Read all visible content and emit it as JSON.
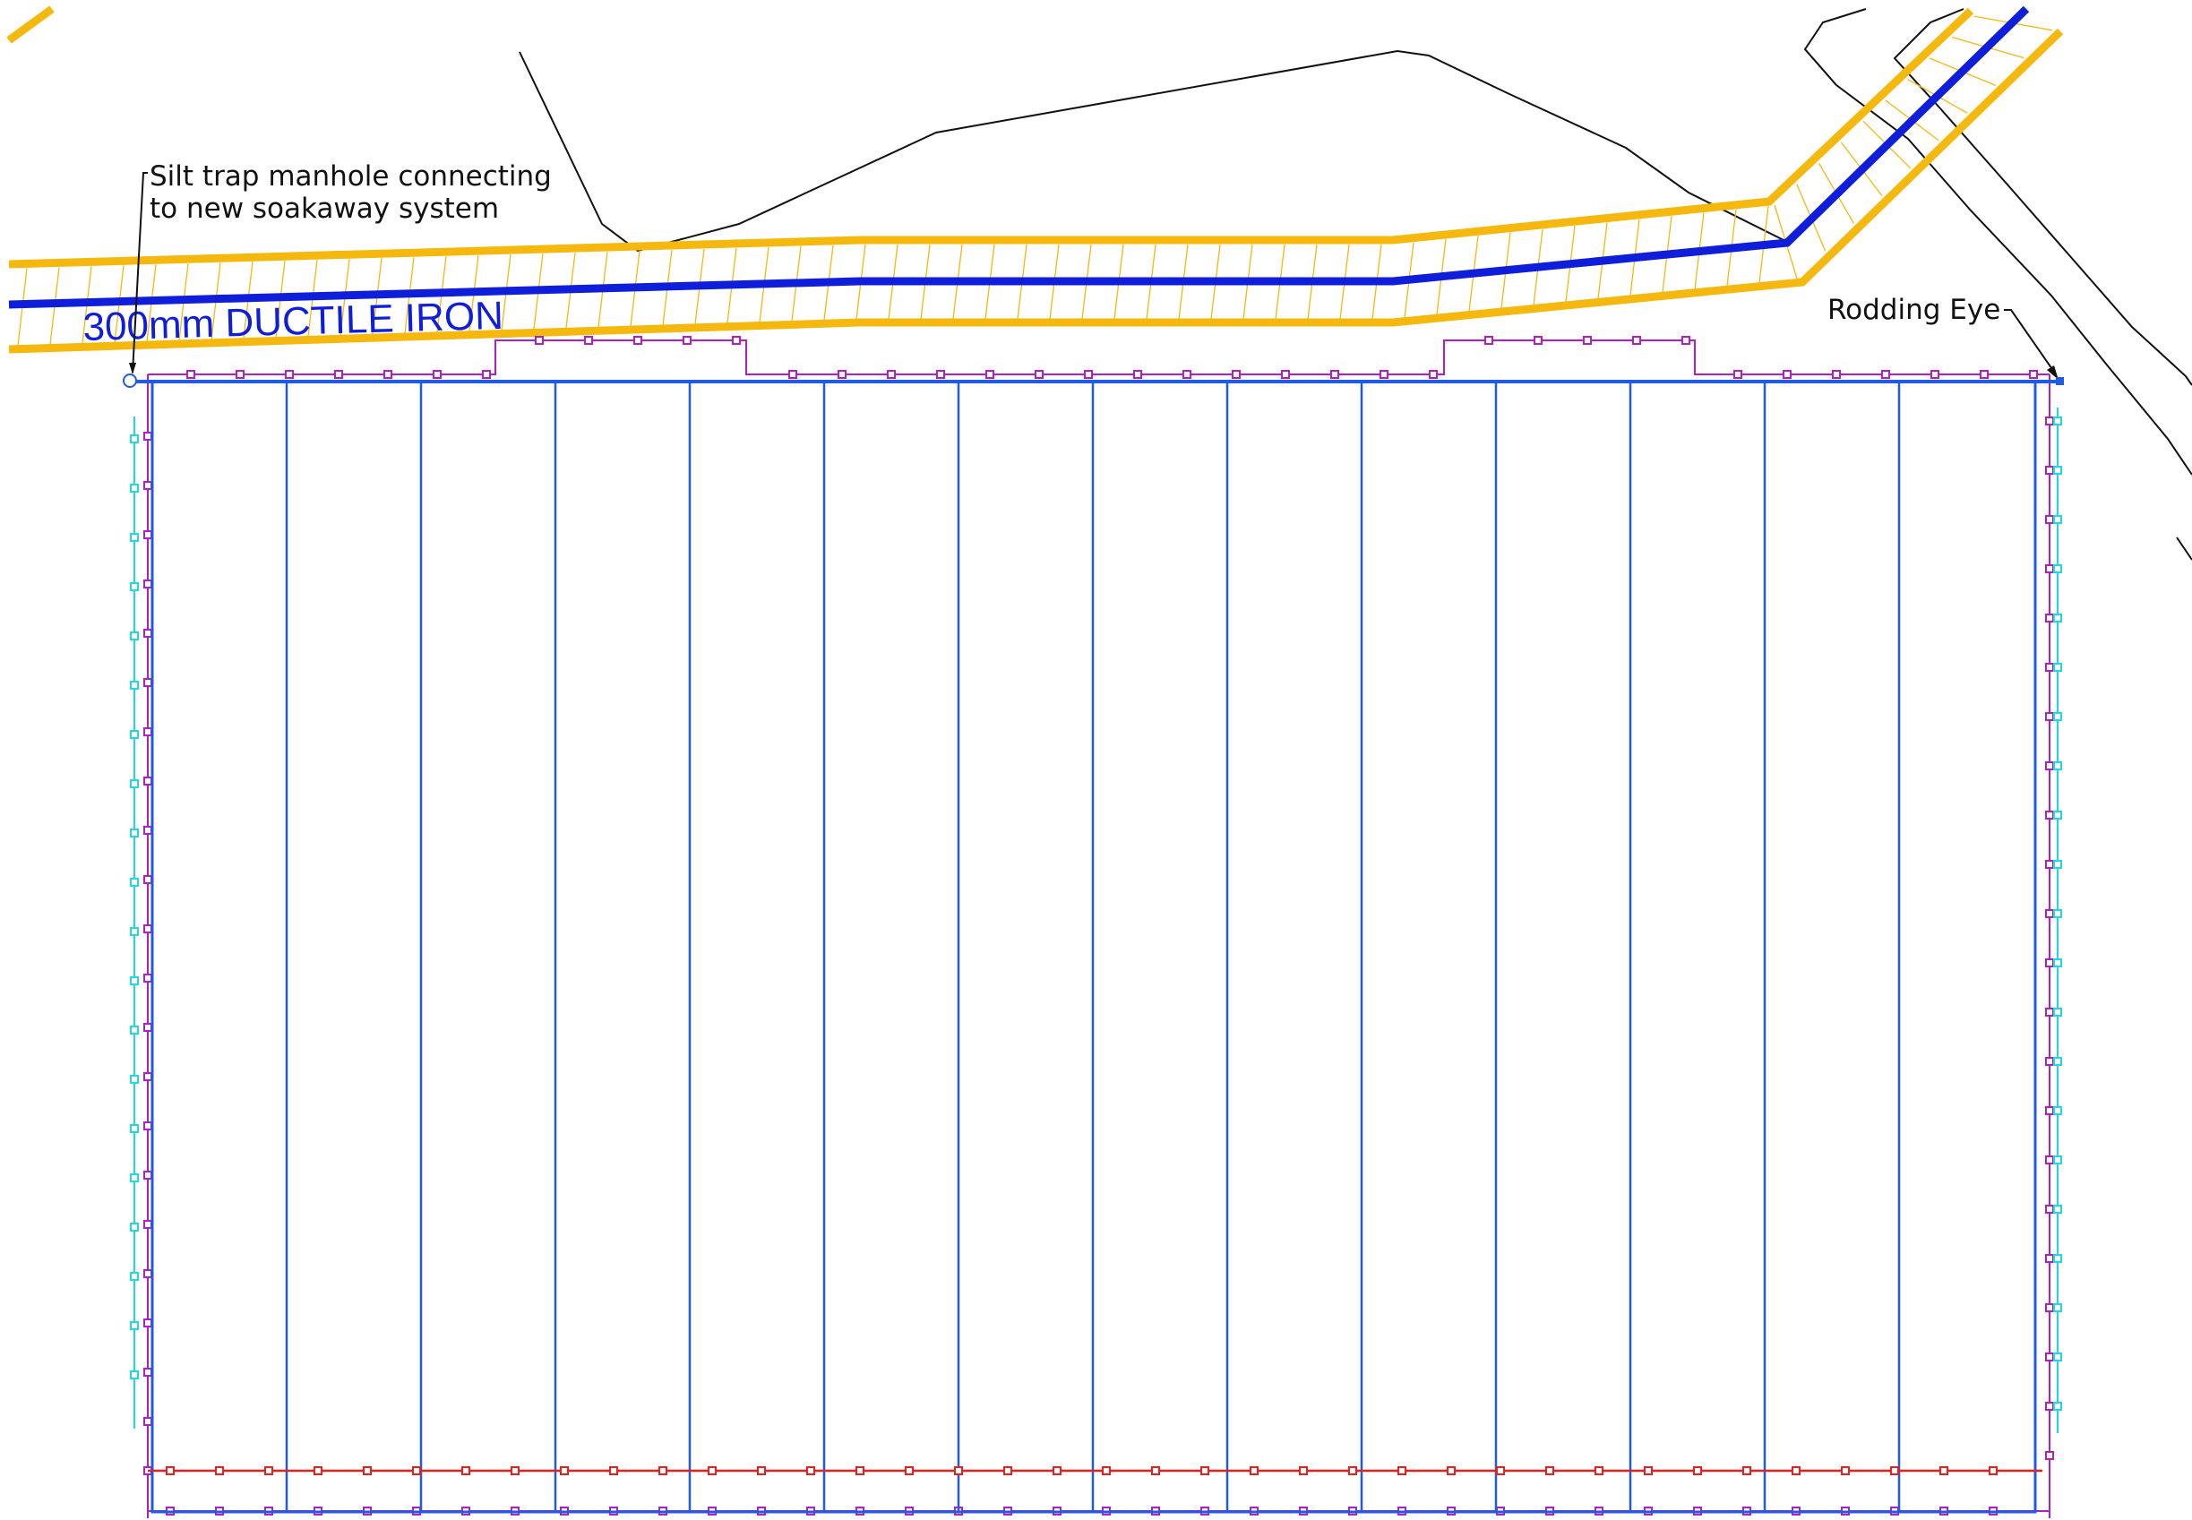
{
  "annotations": {
    "silt_trap_line1": "Silt trap manhole connecting",
    "silt_trap_line2": "to new soakaway system",
    "rodding_eye": "Rodding Eye",
    "pipe_label": "300mm DUCTILE IRON"
  },
  "colors": {
    "pipe": "#0f1fd9",
    "pipe_casing": "#f5b80f",
    "soakaway_grid": "#1f5be6",
    "perimeter_marker": "#b21fc0",
    "edge_marker": "#1fd8e0",
    "bottom_marker": "#e6201f",
    "linework": "#111111",
    "background": "#ffffff"
  },
  "icons": {
    "silt_trap_manhole": "circle-manhole-icon",
    "rodding_eye_end": "square-endpoint-icon"
  }
}
